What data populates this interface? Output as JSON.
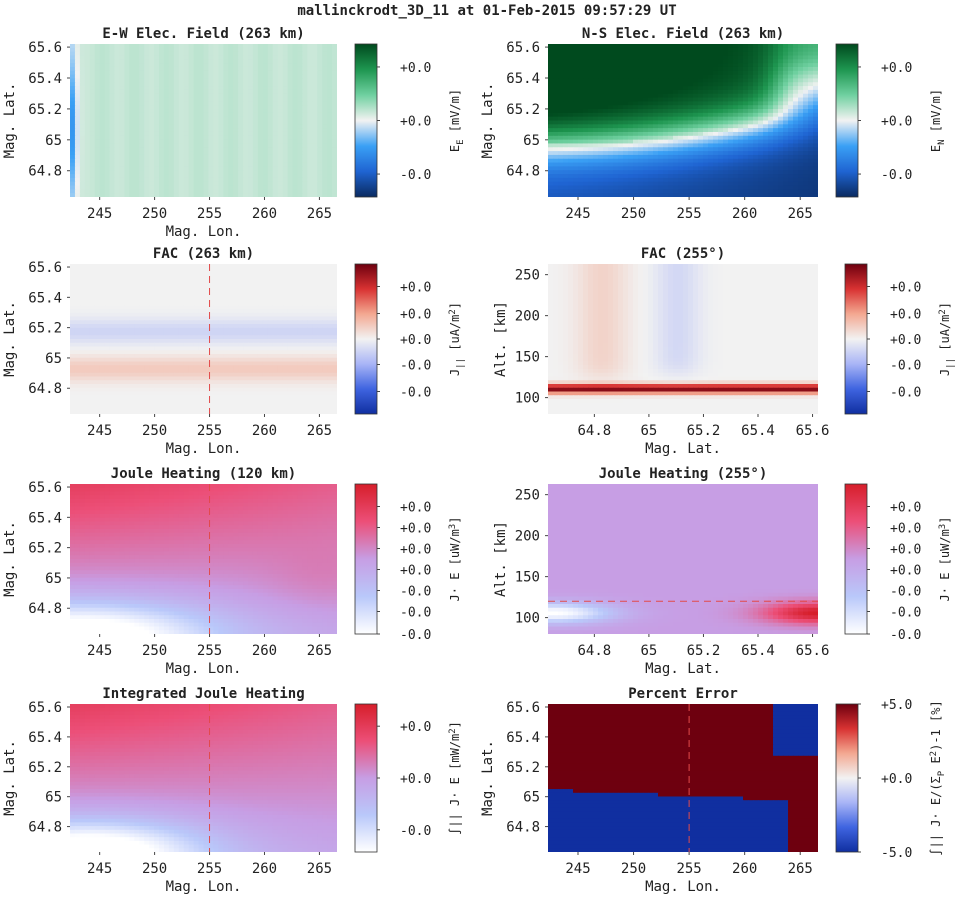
{
  "figure": {
    "title": "mallinckrodt_3D_11 at 01-Feb-2015 09:57:29 UT"
  },
  "colors": {
    "cmap_green_blue": [
      "#0a2a60",
      "#1f64d2",
      "#3aa0f5",
      "#f2f2f2",
      "#6fd0a0",
      "#1e9650",
      "#004a1e"
    ],
    "cmap_blue_red": [
      "#102fa0",
      "#3f64e0",
      "#a8b4f6",
      "#f2f2f2",
      "#f3a891",
      "#d83232",
      "#6e000f"
    ],
    "cmap_white_red": [
      "#ffffff",
      "#b9c8fa",
      "#c79ee4",
      "#ec4f78",
      "#d61e2a"
    ],
    "dashed_line": "#e24a4a"
  },
  "chart_data": [
    {
      "id": "ew",
      "type": "heatmap",
      "title": "E-W Elec. Field (263 km)",
      "xlabel": "Mag. Lon.",
      "ylabel": "Mag. Lat.",
      "xlim": [
        242.3,
        266.6
      ],
      "ylim": [
        64.63,
        65.62
      ],
      "xticks": [
        245,
        250,
        255,
        260,
        265
      ],
      "yticks": [
        64.8,
        65,
        65.2,
        65.4,
        65.6
      ],
      "xticklabels": [
        "245",
        "250",
        "255",
        "260",
        "265"
      ],
      "yticklabels": [
        "64.8",
        "65",
        "65.2",
        "65.4",
        "65.6"
      ],
      "show_xlabel": true,
      "colormap": "green_blue",
      "colorbar": {
        "label": "E_E [mV/m]",
        "ticks": [
          0.85,
          0.5,
          0.15
        ],
        "ticklabels": [
          "+0.0",
          "+0.0",
          "-0.0"
        ]
      }
    },
    {
      "id": "ns",
      "type": "heatmap",
      "title": "N-S Elec. Field (263 km)",
      "xlabel": "",
      "ylabel": "Mag. Lat.",
      "xlim": [
        242.3,
        266.6
      ],
      "ylim": [
        64.63,
        65.62
      ],
      "xticks": [
        245,
        250,
        255,
        260,
        265
      ],
      "yticks": [
        64.8,
        65,
        65.2,
        65.4,
        65.6
      ],
      "xticklabels": [
        "245",
        "250",
        "255",
        "260",
        "265"
      ],
      "yticklabels": [
        "64.8",
        "65",
        "65.2",
        "65.4",
        "65.6"
      ],
      "show_xlabel": false,
      "colormap": "green_blue",
      "colorbar": {
        "label": "E_N [mV/m]",
        "ticks": [
          0.85,
          0.5,
          0.15
        ],
        "ticklabels": [
          "+0.0",
          "+0.0",
          "-0.0"
        ]
      }
    },
    {
      "id": "fac",
      "type": "heatmap",
      "title": "FAC (263 km)",
      "xlabel": "Mag. Lon.",
      "ylabel": "Mag. Lat.",
      "xlim": [
        242.3,
        266.6
      ],
      "ylim": [
        64.63,
        65.62
      ],
      "xticks": [
        245,
        250,
        255,
        260,
        265
      ],
      "yticks": [
        64.8,
        65,
        65.2,
        65.4,
        65.6
      ],
      "xticklabels": [
        "245",
        "250",
        "255",
        "260",
        "265"
      ],
      "yticklabels": [
        "64.8",
        "65",
        "65.2",
        "65.4",
        "65.6"
      ],
      "show_xlabel": true,
      "colormap": "blue_red",
      "vline_x": 255,
      "colorbar": {
        "label": "J_|| [uA/m^2]",
        "ticks": [
          0.85,
          0.67,
          0.5,
          0.33,
          0.15
        ],
        "ticklabels": [
          "+0.0",
          "+0.0",
          "+0.0",
          "-0.0",
          "-0.0"
        ]
      }
    },
    {
      "id": "facalt",
      "type": "heatmap",
      "title": "FAC (255°)",
      "xlabel": "Mag. Lat.",
      "ylabel": "Alt. [km]",
      "xlim": [
        64.63,
        65.62
      ],
      "ylim": [
        80,
        263
      ],
      "xticks": [
        64.8,
        65,
        65.2,
        65.4,
        65.6
      ],
      "yticks": [
        100,
        150,
        200,
        250
      ],
      "xticklabels": [
        "64.8",
        "65",
        "65.2",
        "65.4",
        "65.6"
      ],
      "yticklabels": [
        "100",
        "150",
        "200",
        "250"
      ],
      "show_xlabel": true,
      "colormap": "blue_red",
      "colorbar": {
        "label": "J_|| [uA/m^2]",
        "ticks": [
          0.85,
          0.67,
          0.5,
          0.33,
          0.15
        ],
        "ticklabels": [
          "+0.0",
          "+0.0",
          "+0.0",
          "-0.0",
          "-0.0"
        ]
      }
    },
    {
      "id": "jh",
      "type": "heatmap",
      "title": "Joule Heating (120 km)",
      "xlabel": "Mag. Lon.",
      "ylabel": "Mag. Lat.",
      "xlim": [
        242.3,
        266.6
      ],
      "ylim": [
        64.63,
        65.62
      ],
      "xticks": [
        245,
        250,
        255,
        260,
        265
      ],
      "yticks": [
        64.8,
        65,
        65.2,
        65.4,
        65.6
      ],
      "xticklabels": [
        "245",
        "250",
        "255",
        "260",
        "265"
      ],
      "yticklabels": [
        "64.8",
        "65",
        "65.2",
        "65.4",
        "65.6"
      ],
      "show_xlabel": true,
      "colormap": "white_red",
      "vline_x": 255,
      "colorbar": {
        "label": "J· E [uW/m^3]",
        "ticks": [
          0.85,
          0.71,
          0.57,
          0.43,
          0.29,
          0.15,
          0.0
        ],
        "ticklabels": [
          "+0.0",
          "+0.0",
          "+0.0",
          "+0.0",
          "-0.0",
          "-0.0",
          "-0.0"
        ]
      }
    },
    {
      "id": "jhalt",
      "type": "heatmap",
      "title": "Joule Heating (255°)",
      "xlabel": "Mag. Lat.",
      "ylabel": "Alt. [km]",
      "xlim": [
        64.63,
        65.62
      ],
      "ylim": [
        80,
        263
      ],
      "xticks": [
        64.8,
        65,
        65.2,
        65.4,
        65.6
      ],
      "yticks": [
        100,
        150,
        200,
        250
      ],
      "xticklabels": [
        "64.8",
        "65",
        "65.2",
        "65.4",
        "65.6"
      ],
      "yticklabels": [
        "100",
        "150",
        "200",
        "250"
      ],
      "show_xlabel": true,
      "colormap": "white_red",
      "hline_y": 120,
      "colorbar": {
        "label": "J· E [uW/m^3]",
        "ticks": [
          0.85,
          0.71,
          0.57,
          0.43,
          0.29,
          0.15,
          0.0
        ],
        "ticklabels": [
          "+0.0",
          "+0.0",
          "+0.0",
          "+0.0",
          "-0.0",
          "-0.0",
          "-0.0"
        ]
      }
    },
    {
      "id": "ijh",
      "type": "heatmap",
      "title": "Integrated Joule Heating",
      "xlabel": "Mag. Lon.",
      "ylabel": "Mag. Lat.",
      "xlim": [
        242.3,
        266.6
      ],
      "ylim": [
        64.63,
        65.62
      ],
      "xticks": [
        245,
        250,
        255,
        260,
        265
      ],
      "yticks": [
        64.8,
        65,
        65.2,
        65.4,
        65.6
      ],
      "xticklabels": [
        "245",
        "250",
        "255",
        "260",
        "265"
      ],
      "yticklabels": [
        "64.8",
        "65",
        "65.2",
        "65.4",
        "65.6"
      ],
      "show_xlabel": true,
      "colormap": "white_red",
      "vline_x": 255,
      "colorbar": {
        "label": "∫|| J· E [mW/m^2]",
        "ticks": [
          0.85,
          0.5,
          0.15
        ],
        "ticklabels": [
          "+0.0",
          "+0.0",
          "-0.0"
        ]
      }
    },
    {
      "id": "err",
      "type": "heatmap",
      "title": "Percent Error",
      "xlabel": "Mag. Lon.",
      "ylabel": "Mag. Lat.",
      "xlim": [
        242.3,
        266.6
      ],
      "ylim": [
        64.63,
        65.62
      ],
      "xticks": [
        245,
        250,
        255,
        260,
        265
      ],
      "yticks": [
        64.8,
        65,
        65.2,
        65.4,
        65.6
      ],
      "xticklabels": [
        "245",
        "250",
        "255",
        "260",
        "265"
      ],
      "yticklabels": [
        "64.8",
        "65",
        "65.2",
        "65.4",
        "65.6"
      ],
      "show_xlabel": true,
      "colormap": "blue_red",
      "vline_x": 255,
      "colorbar": {
        "label": "∫|| J· E/(Σ_P E^2)-1 [%]",
        "ticks": [
          1.0,
          0.5,
          0.0
        ],
        "ticklabels": [
          "+5.0",
          "+0.0",
          "-5.0"
        ]
      }
    }
  ]
}
